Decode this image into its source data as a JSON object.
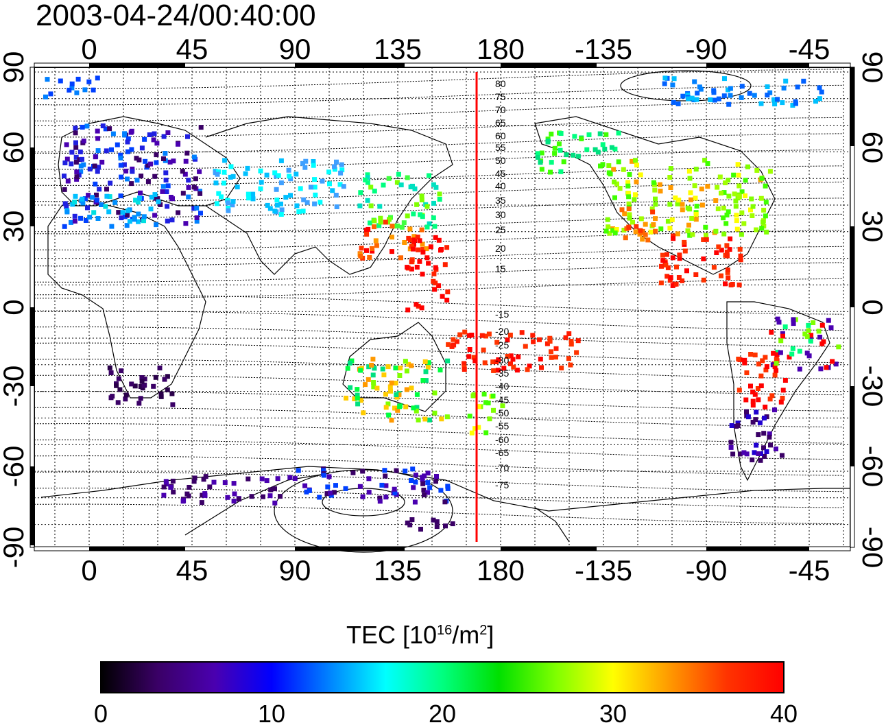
{
  "title": "2003-04-24/00:40:00",
  "map": {
    "top_axis_ticks": [
      "0",
      "45",
      "90",
      "135",
      "180",
      "-135",
      "-90",
      "-45"
    ],
    "bottom_axis_ticks": [
      "0",
      "45",
      "90",
      "135",
      "180",
      "-135",
      "-90",
      "-45"
    ],
    "left_axis_ticks": [
      "90",
      "60",
      "30",
      "0",
      "-30",
      "-60",
      "-90"
    ],
    "right_axis_ticks": [
      "90",
      "60",
      "30",
      "0",
      "-30",
      "-60",
      "-90"
    ],
    "contour_labels": [
      "80",
      "75",
      "70",
      "65",
      "60",
      "55",
      "50",
      "45",
      "40",
      "35",
      "30",
      "25",
      "20",
      "15",
      "-15",
      "-20",
      "-25",
      "-30",
      "-35",
      "-40",
      "-45",
      "-50",
      "-55",
      "-60",
      "-65",
      "-70",
      "-75"
    ],
    "marker_line_color": "#ff0000"
  },
  "colorbar": {
    "title_prefix": "TEC  [10",
    "title_exp1": "16",
    "title_mid": "/m",
    "title_exp2": "2",
    "title_suffix": "]",
    "ticks": [
      "0",
      "10",
      "20",
      "30",
      "40"
    ],
    "colors": [
      "#000000",
      "#3a0066",
      "#4a00b0",
      "#0000ff",
      "#0080ff",
      "#00ffff",
      "#00ff80",
      "#00e000",
      "#80ff00",
      "#ffff00",
      "#ff9900",
      "#ff3300",
      "#ff0000"
    ]
  },
  "legend_text": {
    "unit_label": "TEC"
  }
}
